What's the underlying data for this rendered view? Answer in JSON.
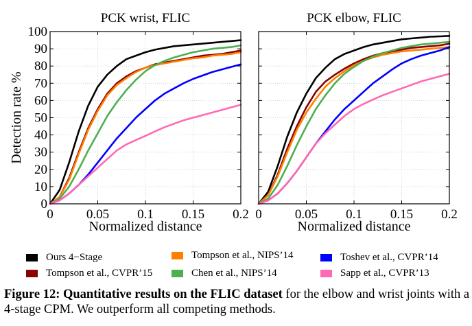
{
  "chart_data": [
    {
      "type": "line",
      "title": "PCK wrist, FLIC",
      "xlabel": "Normalized distance",
      "ylabel": "Detection rate %",
      "xlim": [
        0,
        0.2
      ],
      "ylim": [
        0,
        100
      ],
      "xticks": [
        "0",
        "0.05",
        "0.1",
        "0.15",
        "0.2"
      ],
      "yticks": [
        "0",
        "10",
        "20",
        "30",
        "40",
        "50",
        "60",
        "70",
        "80",
        "90",
        "100"
      ],
      "grid": true,
      "x": [
        0,
        0.01,
        0.02,
        0.03,
        0.04,
        0.05,
        0.06,
        0.07,
        0.08,
        0.09,
        0.1,
        0.11,
        0.12,
        0.13,
        0.14,
        0.15,
        0.16,
        0.17,
        0.18,
        0.19,
        0.2
      ],
      "series": [
        {
          "name": "Ours 4−Stage",
          "values": [
            0,
            8,
            24,
            42,
            57,
            68,
            75,
            80,
            84,
            86,
            88,
            89.5,
            90.5,
            91.5,
            92,
            92.5,
            93,
            93.5,
            94,
            94.5,
            95
          ]
        },
        {
          "name": "Tompson et al., CVPR’15",
          "values": [
            0,
            4,
            15,
            30,
            44,
            55,
            64,
            70,
            74,
            77,
            79,
            81,
            82,
            83,
            84,
            85,
            86,
            86.5,
            87,
            88,
            89
          ]
        },
        {
          "name": "Tompson et al., NIPS’14",
          "values": [
            0,
            4,
            14,
            29,
            43,
            54,
            63,
            69,
            73,
            76.5,
            79,
            80.5,
            81.5,
            82.5,
            83.5,
            84.5,
            85,
            86,
            86.5,
            87,
            88
          ]
        },
        {
          "name": "Chen et al., NIPS’14",
          "values": [
            0,
            3,
            10,
            20,
            31,
            41,
            51,
            59,
            66,
            72,
            77,
            80.5,
            83,
            85,
            86.5,
            88,
            89,
            90,
            90.5,
            91,
            92
          ]
        },
        {
          "name": "Toshev et al., CVPR’14",
          "values": [
            0,
            2,
            6,
            11,
            17,
            24,
            31,
            38,
            44,
            50,
            55,
            60,
            64,
            67,
            70,
            72.5,
            74.5,
            76.5,
            78,
            79.5,
            81
          ]
        },
        {
          "name": "Sapp et al., CVPR’13",
          "values": [
            0,
            2,
            6,
            11,
            16,
            21,
            26,
            31,
            34.5,
            37,
            39.5,
            42,
            44.5,
            46.5,
            48.5,
            50,
            51.5,
            53,
            54.5,
            56,
            57.5
          ]
        }
      ]
    },
    {
      "type": "line",
      "title": "PCK elbow, FLIC",
      "xlabel": "Normalized distance",
      "ylabel": "",
      "xlim": [
        0,
        0.2
      ],
      "ylim": [
        0,
        100
      ],
      "xticks": [
        "0",
        "0.05",
        "0.1",
        "0.15",
        "0.2"
      ],
      "yticks": [],
      "grid": true,
      "x": [
        0,
        0.01,
        0.02,
        0.03,
        0.04,
        0.05,
        0.06,
        0.07,
        0.08,
        0.09,
        0.1,
        0.11,
        0.12,
        0.13,
        0.14,
        0.15,
        0.16,
        0.17,
        0.18,
        0.19,
        0.2
      ],
      "series": [
        {
          "name": "Ours 4−Stage",
          "values": [
            0,
            7,
            22,
            39,
            53,
            64,
            73,
            79,
            84,
            87,
            89,
            91,
            92.5,
            93.5,
            94.5,
            95.5,
            96,
            96.5,
            97,
            97.2,
            97.5
          ]
        },
        {
          "name": "Tompson et al., CVPR’15",
          "values": [
            0,
            5,
            17,
            32,
            45,
            56,
            65,
            71,
            75,
            78.5,
            81.5,
            84,
            86,
            87.5,
            88.5,
            89.5,
            90.5,
            91,
            91.5,
            92,
            93
          ]
        },
        {
          "name": "Tompson et al., NIPS’14",
          "values": [
            0,
            5,
            16,
            30,
            43,
            53,
            61,
            68,
            73,
            77,
            80.5,
            83,
            85,
            86.5,
            87.5,
            88.5,
            89,
            89.5,
            90,
            90.5,
            91
          ]
        },
        {
          "name": "Chen et al., NIPS’14",
          "values": [
            0,
            3,
            11,
            22,
            34,
            45,
            55,
            63,
            70,
            75.5,
            79.5,
            83,
            85.5,
            87.5,
            89,
            90.5,
            91.5,
            92.5,
            93,
            93.5,
            94
          ]
        },
        {
          "name": "Toshev et al., CVPR’14",
          "values": [
            0,
            2,
            6,
            12,
            19,
            27,
            35,
            42,
            49,
            55,
            60,
            65,
            70,
            74,
            78,
            81.5,
            84,
            86,
            87.5,
            89,
            91
          ]
        },
        {
          "name": "Sapp et al., CVPR’13",
          "values": [
            0,
            2,
            6,
            12,
            19,
            27,
            35,
            41,
            46,
            51,
            55,
            58,
            60.5,
            63,
            65,
            67,
            69,
            71,
            72.5,
            74,
            75.5
          ]
        }
      ]
    }
  ],
  "legend": {
    "items": [
      {
        "label": "Ours 4−Stage",
        "color": "#000000"
      },
      {
        "label": "Tompson et al., CVPR’15",
        "color": "#8b0000"
      },
      {
        "label": "Tompson et al., NIPS’14",
        "color": "#ff8000"
      },
      {
        "label": "Chen et al., NIPS’14",
        "color": "#4caf50"
      },
      {
        "label": "Toshev et al., CVPR’14",
        "color": "#0000ff"
      },
      {
        "label": "Sapp et al., CVPR’13",
        "color": "#ff69b4"
      }
    ]
  },
  "caption": {
    "bold": "Figure 12: Quantitative results on the FLIC dataset",
    "rest": " for the elbow and wrist joints with a 4-stage CPM. We outperform all competing methods."
  }
}
